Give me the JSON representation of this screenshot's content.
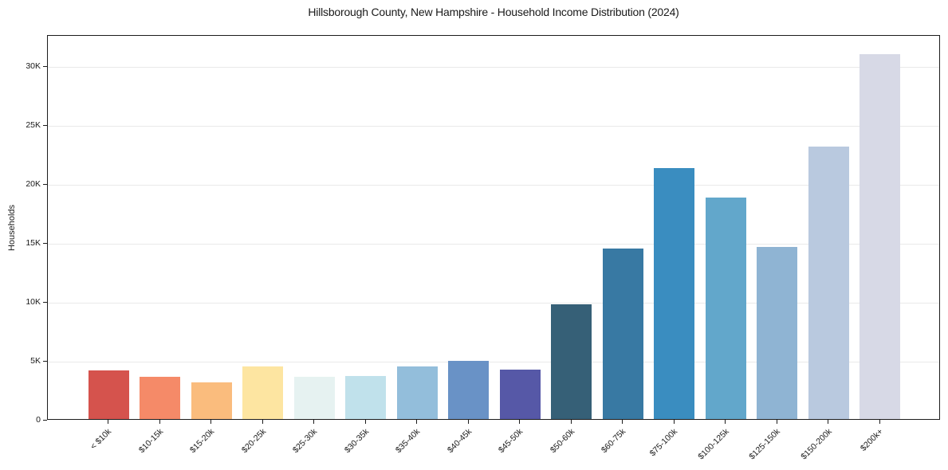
{
  "chart_data": {
    "type": "bar",
    "title": "Hillsborough County, New Hampshire - Household Income Distribution (2024)",
    "xlabel": "",
    "ylabel": "Households",
    "categories": [
      "< $10k",
      "$10-15k",
      "$15-20k",
      "$20-25k",
      "$25-30k",
      "$30-35k",
      "$35-40k",
      "$40-45k",
      "$45-50k",
      "$50-60k",
      "$60-75k",
      "$75-100k",
      "$100-125k",
      "$125-150k",
      "$150-200k",
      "$200k+"
    ],
    "values": [
      4100,
      3600,
      3120,
      4450,
      3610,
      3670,
      4480,
      4950,
      4170,
      9710,
      14440,
      21280,
      18790,
      14580,
      23100,
      30900
    ],
    "bar_colors": [
      "#d5534d",
      "#f58a68",
      "#fabc7d",
      "#fde5a1",
      "#e6f2f1",
      "#c0e1eb",
      "#93bedb",
      "#6992c6",
      "#5658a7",
      "#366077",
      "#3879a3",
      "#3a8dc0",
      "#62a7cb",
      "#8fb4d3",
      "#b9c9df",
      "#d7d9e6"
    ],
    "ytick_values": [
      0,
      5000,
      10000,
      15000,
      20000,
      25000,
      30000
    ],
    "ytick_labels": [
      "0",
      "5K",
      "10K",
      "15K",
      "20K",
      "25K",
      "30K"
    ],
    "ylim": [
      0,
      32600
    ],
    "grid": "horizontal",
    "grid_color": "#e9e9e9",
    "axis_color": "#1c1c1c",
    "background_color": "#ffffff",
    "legend": "none",
    "x_tick_rotation": 45
  }
}
